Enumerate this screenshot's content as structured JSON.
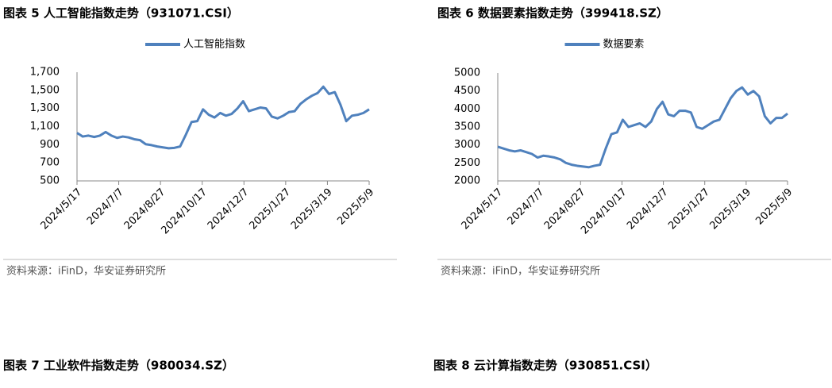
{
  "chart_data": [
    {
      "type": "line",
      "title": "图表 5 人工智能指数走势（931071.CSI）",
      "source": "资料来源：iFinD，华安证券研究所",
      "x": [
        "2024/5/17",
        "2024/5/24",
        "2024/5/31",
        "2024/6/7",
        "2024/6/14",
        "2024/6/21",
        "2024/6/28",
        "2024/7/5",
        "2024/7/12",
        "2024/7/19",
        "2024/7/26",
        "2024/8/2",
        "2024/8/9",
        "2024/8/16",
        "2024/8/23",
        "2024/8/30",
        "2024/9/6",
        "2024/9/13",
        "2024/9/20",
        "2024/9/27",
        "2024/10/4",
        "2024/10/11",
        "2024/10/18",
        "2024/10/25",
        "2024/11/1",
        "2024/11/8",
        "2024/11/15",
        "2024/11/22",
        "2024/11/29",
        "2024/12/6",
        "2024/12/13",
        "2024/12/20",
        "2024/12/27",
        "2025/1/3",
        "2025/1/10",
        "2025/1/17",
        "2025/1/24",
        "2025/1/31",
        "2025/2/7",
        "2025/2/14",
        "2025/2/21",
        "2025/2/28",
        "2025/3/7",
        "2025/3/14",
        "2025/3/21",
        "2025/3/28",
        "2025/4/4",
        "2025/4/11",
        "2025/4/18",
        "2025/4/25",
        "2025/5/2",
        "2025/5/9"
      ],
      "series": [
        {
          "name": "人工智能指数",
          "color": "#4f81bd",
          "values": [
            1030,
            990,
            1000,
            985,
            1000,
            1040,
            1000,
            975,
            990,
            980,
            960,
            950,
            905,
            895,
            880,
            870,
            860,
            865,
            880,
            1010,
            1150,
            1160,
            1290,
            1230,
            1200,
            1250,
            1220,
            1240,
            1300,
            1380,
            1270,
            1290,
            1310,
            1300,
            1210,
            1190,
            1220,
            1260,
            1270,
            1350,
            1400,
            1440,
            1470,
            1540,
            1460,
            1480,
            1340,
            1160,
            1220,
            1230,
            1250,
            1290
          ]
        }
      ],
      "xlim": [
        "2024/5/17",
        "2025/5/9"
      ],
      "xticks": [
        "2024/5/17",
        "2024/7/7",
        "2024/8/27",
        "2024/10/17",
        "2024/12/7",
        "2025/1/27",
        "2025/3/19",
        "2025/5/9"
      ],
      "ylim": [
        500,
        1700
      ],
      "yticks": [
        500,
        700,
        900,
        {
          "value": 1100,
          "label": "1,100"
        },
        {
          "value": 1300,
          "label": "1,300"
        },
        {
          "value": 1500,
          "label": "1,500"
        },
        {
          "value": 1700,
          "label": "1,700"
        }
      ],
      "legend": "top"
    },
    {
      "type": "line",
      "title": "图表 6 数据要素指数走势（399418.SZ）",
      "source": "资料来源：iFinD，华安证券研究所",
      "x": [
        "2024/5/17",
        "2024/5/24",
        "2024/5/31",
        "2024/6/7",
        "2024/6/14",
        "2024/6/21",
        "2024/6/28",
        "2024/7/5",
        "2024/7/12",
        "2024/7/19",
        "2024/7/26",
        "2024/8/2",
        "2024/8/9",
        "2024/8/16",
        "2024/8/23",
        "2024/8/30",
        "2024/9/6",
        "2024/9/13",
        "2024/9/20",
        "2024/9/27",
        "2024/10/4",
        "2024/10/11",
        "2024/10/18",
        "2024/10/25",
        "2024/11/1",
        "2024/11/8",
        "2024/11/15",
        "2024/11/22",
        "2024/11/29",
        "2024/12/6",
        "2024/12/13",
        "2024/12/20",
        "2024/12/27",
        "2025/1/3",
        "2025/1/10",
        "2025/1/17",
        "2025/1/24",
        "2025/1/31",
        "2025/2/7",
        "2025/2/14",
        "2025/2/21",
        "2025/2/28",
        "2025/3/7",
        "2025/3/14",
        "2025/3/21",
        "2025/3/28",
        "2025/4/4",
        "2025/4/11",
        "2025/4/18",
        "2025/4/25",
        "2025/5/2",
        "2025/5/9"
      ],
      "series": [
        {
          "name": "数据要素",
          "color": "#4f81bd",
          "values": [
            2950,
            2900,
            2850,
            2820,
            2850,
            2800,
            2750,
            2650,
            2700,
            2680,
            2650,
            2600,
            2500,
            2450,
            2420,
            2400,
            2380,
            2420,
            2450,
            2900,
            3300,
            3350,
            3700,
            3500,
            3550,
            3600,
            3500,
            3650,
            4000,
            4200,
            3850,
            3800,
            3950,
            3950,
            3900,
            3500,
            3450,
            3550,
            3650,
            3700,
            4000,
            4300,
            4500,
            4600,
            4400,
            4500,
            4350,
            3800,
            3600,
            3750,
            3750,
            3870
          ]
        }
      ],
      "xlim": [
        "2024/5/17",
        "2025/5/9"
      ],
      "xticks": [
        "2024/5/17",
        "2024/7/7",
        "2024/8/27",
        "2024/10/17",
        "2024/12/7",
        "2025/1/27",
        "2025/3/19",
        "2025/5/9"
      ],
      "ylim": [
        2000,
        5000
      ],
      "yticks": [
        2000,
        2500,
        3000,
        3500,
        4000,
        4500,
        5000
      ],
      "legend": "top"
    }
  ],
  "headers": [
    "图表 7 工业软件指数走势（980034.SZ）",
    "图表 8 云计算指数走势（930851.CSI）"
  ]
}
